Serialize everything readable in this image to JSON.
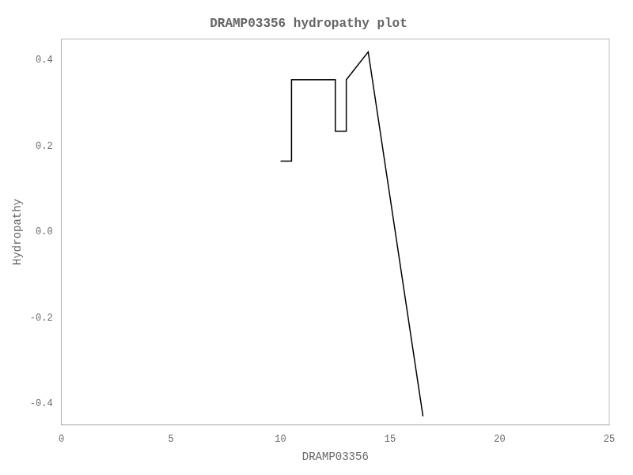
{
  "chart_data": {
    "type": "line",
    "title": "DRAMP03356 hydropathy plot",
    "xlabel": "DRAMP03356",
    "ylabel": "Hydropathy",
    "x": [
      10.0,
      10.5,
      10.5,
      11.5,
      11.5,
      12.5,
      12.5,
      13.0,
      13.0,
      14.0,
      14.0,
      16.5
    ],
    "values": [
      0.165,
      0.165,
      0.355,
      0.355,
      0.355,
      0.355,
      0.235,
      0.235,
      0.355,
      0.42,
      0.42,
      -0.43
    ],
    "color": "#000000",
    "xlim": [
      0,
      25
    ],
    "xticks": [
      0,
      5,
      10,
      15,
      20,
      25
    ],
    "ylim": [
      -0.45,
      0.45
    ],
    "yticks": [
      -0.4,
      -0.2,
      {
        "value": 0.0,
        "label": "0.0"
      },
      0.2,
      0.4
    ],
    "grid": false
  }
}
